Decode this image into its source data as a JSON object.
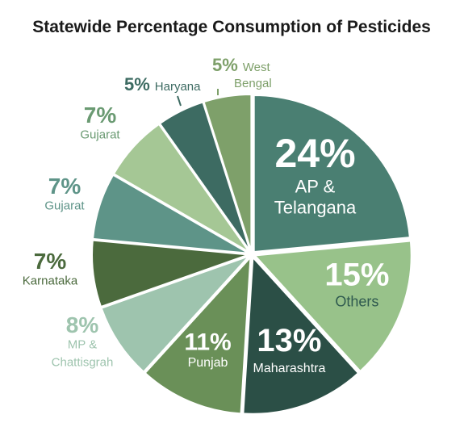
{
  "chart_data": {
    "type": "pie",
    "title": "Statewide Percentage Consumption of Pesticides",
    "slices": [
      {
        "percent_label": "24%",
        "label_lines": [
          "AP &",
          "Telangana"
        ],
        "value": 24,
        "color": "#4a7f72",
        "text_color": "#ffffff"
      },
      {
        "percent_label": "15%",
        "label_lines": [
          "Others"
        ],
        "value": 15,
        "color": "#98c28a",
        "text_color": "#ffffff",
        "sub_text_color": "#2f5a4f"
      },
      {
        "percent_label": "13%",
        "label_lines": [
          "Maharashtra"
        ],
        "value": 13,
        "color": "#2b4f46",
        "text_color": "#ffffff"
      },
      {
        "percent_label": "11%",
        "label_lines": [
          "Punjab"
        ],
        "value": 11,
        "color": "#6a9058",
        "text_color": "#ffffff"
      },
      {
        "percent_label": "8%",
        "label_lines": [
          "MP &",
          "Chattisgrah"
        ],
        "value": 8,
        "color": "#9ec4ae",
        "text_color": "#9ec4ae"
      },
      {
        "percent_label": "7%",
        "label_lines": [
          "Karnataka"
        ],
        "value": 7,
        "color": "#4b6a3d",
        "text_color": "#4b6a3d"
      },
      {
        "percent_label": "7%",
        "label_lines": [
          "Gujarat"
        ],
        "value": 7,
        "color": "#5e9488",
        "text_color": "#5e9488"
      },
      {
        "percent_label": "7%",
        "label_lines": [
          "Gujarat"
        ],
        "value": 7,
        "color": "#a5c795",
        "text_color": "#6a9a72"
      },
      {
        "percent_label": "5%",
        "label_lines": [
          "Haryana"
        ],
        "value": 5,
        "color": "#3d6b62",
        "text_color": "#3d6b62"
      },
      {
        "percent_label": "5%",
        "label_lines": [
          "West",
          "Bengal"
        ],
        "value": 5,
        "color": "#7ea06a",
        "text_color": "#7ea06a"
      }
    ]
  }
}
